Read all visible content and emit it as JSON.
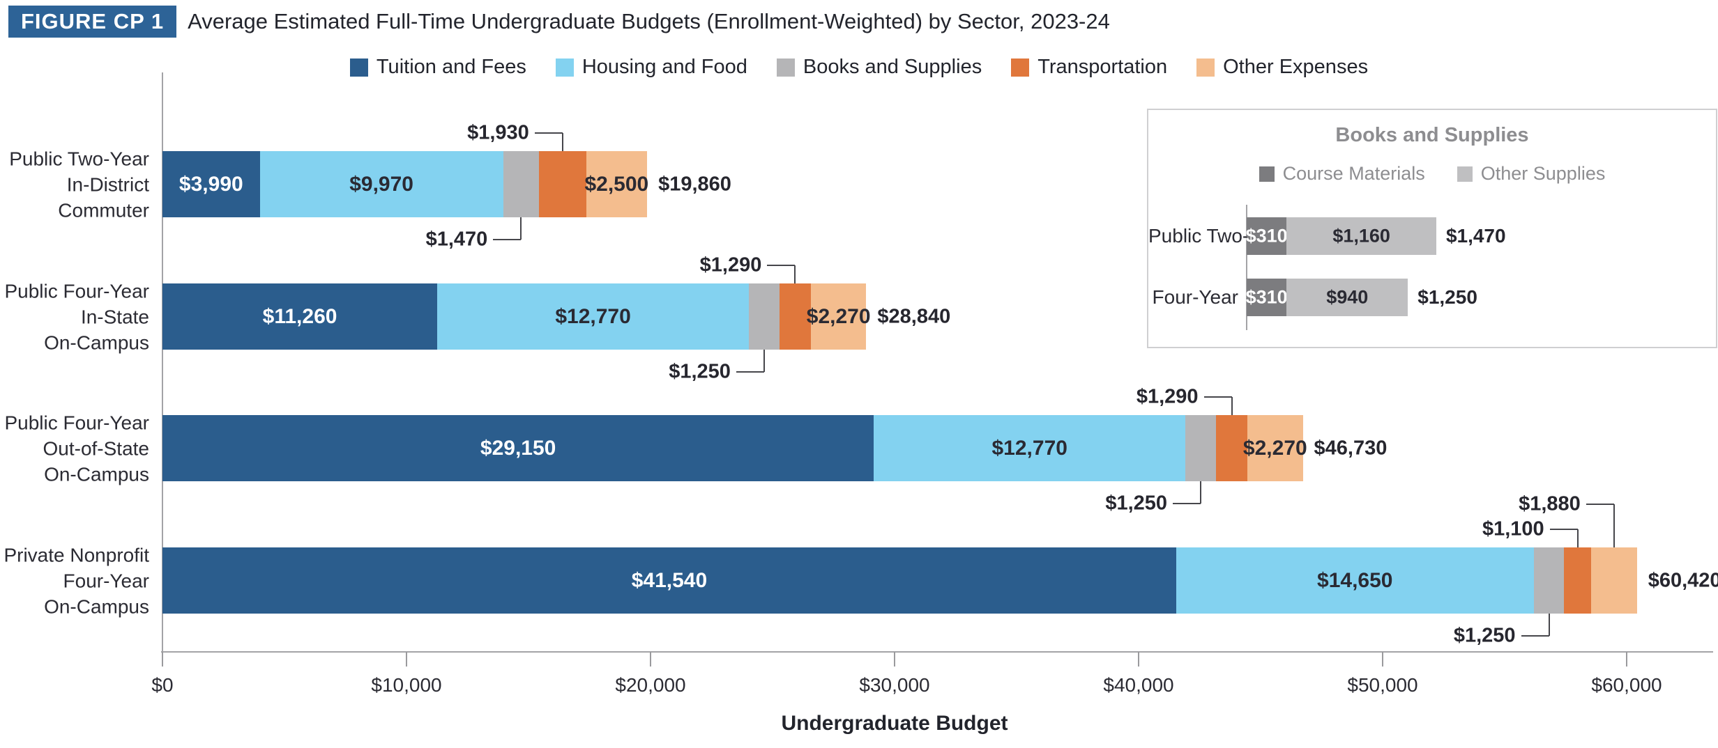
{
  "figure": {
    "badge": "FIGURE CP 1",
    "title": "Average Estimated Full-Time Undergraduate Budgets (Enrollment-Weighted) by Sector, 2023-24"
  },
  "chart_data": {
    "type": "bar",
    "orientation": "horizontal-stacked",
    "xlabel": "Undergraduate Budget",
    "xlim": [
      0,
      63000
    ],
    "grid": false,
    "x_ticks": [
      {
        "value": 0,
        "label": "$0"
      },
      {
        "value": 10000,
        "label": "$10,000"
      },
      {
        "value": 20000,
        "label": "$20,000"
      },
      {
        "value": 30000,
        "label": "$30,000"
      },
      {
        "value": 40000,
        "label": "$40,000"
      },
      {
        "value": 50000,
        "label": "$50,000"
      },
      {
        "value": 60000,
        "label": "$60,000"
      }
    ],
    "legend": [
      {
        "name": "Tuition and Fees",
        "color": "#2b5d8d"
      },
      {
        "name": "Housing and Food",
        "color": "#83d2f0"
      },
      {
        "name": "Books and Supplies",
        "color": "#b5b5b7"
      },
      {
        "name": "Transportation",
        "color": "#e0773c"
      },
      {
        "name": "Other Expenses",
        "color": "#f4bd8e"
      }
    ],
    "rows": [
      {
        "category_lines": [
          "Public Two-Year",
          "In-District",
          "Commuter"
        ],
        "values": [
          3990,
          9970,
          1470,
          1930,
          2500
        ],
        "value_labels": [
          "$3,990",
          "$9,970",
          "$1,470",
          "$1,930",
          "$2,500"
        ],
        "total": 19860,
        "total_label": "$19,860",
        "inside_labels": [
          0,
          1,
          4
        ],
        "callouts": [
          {
            "seg": 3,
            "side": "above",
            "level": 1
          },
          {
            "seg": 2,
            "side": "below",
            "level": 1
          }
        ]
      },
      {
        "category_lines": [
          "Public Four-Year",
          "In-State",
          "On-Campus"
        ],
        "values": [
          11260,
          12770,
          1250,
          1290,
          2270
        ],
        "value_labels": [
          "$11,260",
          "$12,770",
          "$1,250",
          "$1,290",
          "$2,270"
        ],
        "total": 28840,
        "total_label": "$28,840",
        "inside_labels": [
          0,
          1,
          4
        ],
        "callouts": [
          {
            "seg": 3,
            "side": "above",
            "level": 1
          },
          {
            "seg": 2,
            "side": "below",
            "level": 1
          }
        ]
      },
      {
        "category_lines": [
          "Public Four-Year",
          "Out-of-State",
          "On-Campus"
        ],
        "values": [
          29150,
          12770,
          1250,
          1290,
          2270
        ],
        "value_labels": [
          "$29,150",
          "$12,770",
          "$1,250",
          "$1,290",
          "$2,270"
        ],
        "total": 46730,
        "total_label": "$46,730",
        "inside_labels": [
          0,
          1,
          4
        ],
        "callouts": [
          {
            "seg": 3,
            "side": "above",
            "level": 1
          },
          {
            "seg": 2,
            "side": "below",
            "level": 1
          }
        ]
      },
      {
        "category_lines": [
          "Private Nonprofit",
          "Four-Year",
          "On-Campus"
        ],
        "values": [
          41540,
          14650,
          1250,
          1100,
          1880
        ],
        "value_labels": [
          "$41,540",
          "$14,650",
          "$1,250",
          "$1,100",
          "$1,880"
        ],
        "total": 60420,
        "total_label": "$60,420",
        "inside_labels": [
          0,
          1
        ],
        "callouts": [
          {
            "seg": 4,
            "side": "above",
            "level": 2
          },
          {
            "seg": 3,
            "side": "above",
            "level": 1
          },
          {
            "seg": 2,
            "side": "below",
            "level": 1
          }
        ]
      }
    ],
    "inset": {
      "title": "Books and Supplies",
      "legend": [
        {
          "name": "Course Materials",
          "color": "#7c7c7f"
        },
        {
          "name": "Other Supplies",
          "color": "#bfbfc1"
        }
      ],
      "rows": [
        {
          "category": "Public Two-Year",
          "values": [
            310,
            1160
          ],
          "value_labels": [
            "$310",
            "$1,160"
          ],
          "total": 1470,
          "total_label": "$1,470"
        },
        {
          "category": "Four-Year",
          "values": [
            310,
            940
          ],
          "value_labels": [
            "$310",
            "$940"
          ],
          "total": 1250,
          "total_label": "$1,250"
        }
      ]
    }
  }
}
